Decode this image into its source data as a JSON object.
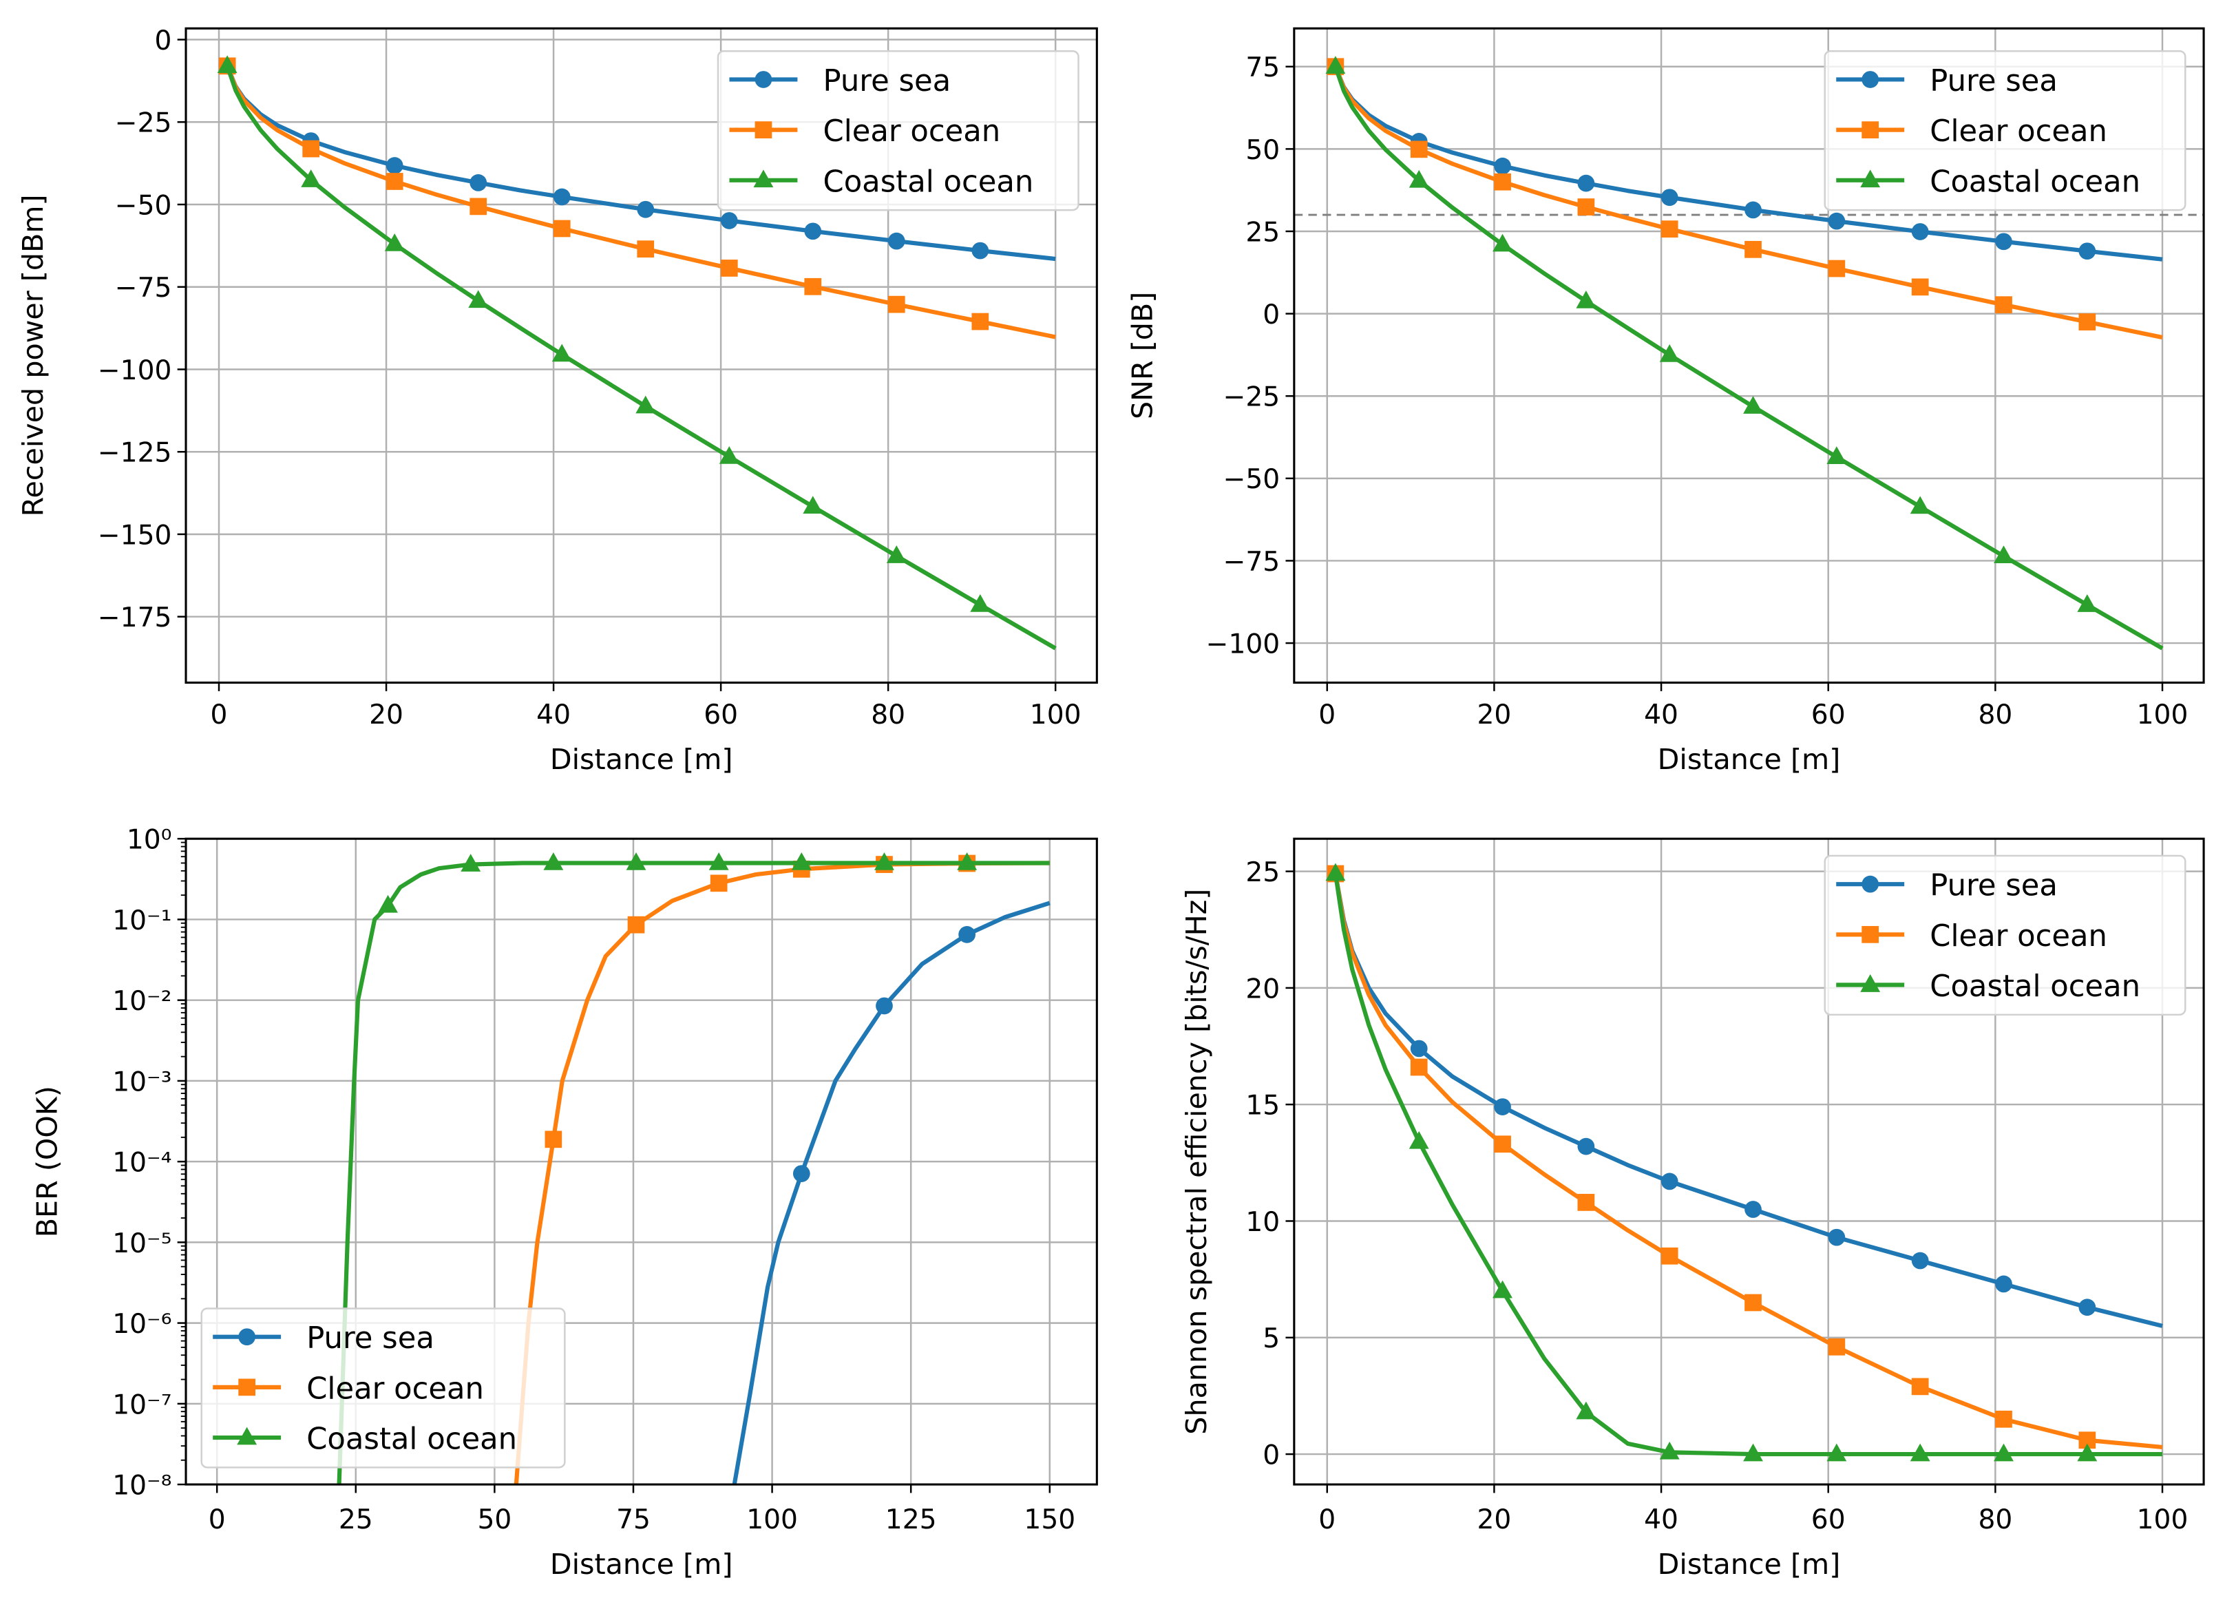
{
  "colors": {
    "pure_sea": "#1f77b4",
    "clear_ocean": "#ff7f0e",
    "coastal_ocean": "#2ca02c",
    "threshold": "#808080"
  },
  "chart_data": [
    {
      "type": "line",
      "xlabel": "Distance [m]",
      "ylabel": "Received power [dBm]",
      "xlim": [
        -3.95,
        104.95
      ],
      "ylim": [
        -195,
        3.4
      ],
      "xticks": [
        0,
        20,
        40,
        60,
        80,
        100
      ],
      "xtick_labels": [
        "0",
        "20",
        "40",
        "60",
        "80",
        "100"
      ],
      "yticks": [
        0,
        -25,
        -50,
        -75,
        -100,
        -125,
        -150,
        -175
      ],
      "ytick_labels": [
        "0",
        "−25",
        "−50",
        "−75",
        "−100",
        "−125",
        "−150",
        "−175"
      ],
      "grid": true,
      "legend": "upper-right",
      "x": [
        1,
        2,
        3,
        5,
        7,
        11,
        15,
        21,
        26,
        31,
        36,
        41,
        51,
        61,
        71,
        81,
        91,
        100
      ],
      "markers_x": [
        1,
        11,
        21,
        31,
        41,
        51,
        61,
        71,
        81,
        91
      ],
      "series": [
        {
          "name": "Pure sea",
          "marker": "circle",
          "values": [
            -8,
            -14.2,
            -17.9,
            -22.7,
            -26.0,
            -30.7,
            -34.1,
            -38.2,
            -41.0,
            -43.4,
            -45.7,
            -47.7,
            -51.5,
            -54.9,
            -58.1,
            -61.1,
            -64.0,
            -66.5
          ]
        },
        {
          "name": "Clear ocean",
          "marker": "square",
          "values": [
            -8,
            -14.4,
            -18.4,
            -23.7,
            -27.5,
            -33.1,
            -37.5,
            -43.0,
            -47.0,
            -50.6,
            -54.0,
            -57.3,
            -63.5,
            -69.3,
            -74.9,
            -80.3,
            -85.5,
            -90.2
          ]
        },
        {
          "name": "Coastal ocean",
          "marker": "triangle",
          "values": [
            -8,
            -15.4,
            -20.3,
            -27.5,
            -33.2,
            -42.6,
            -50.8,
            -62.0,
            -70.8,
            -79.2,
            -87.4,
            -95.5,
            -111.2,
            -126.5,
            -141.6,
            -156.6,
            -171.4,
            -184.6
          ]
        }
      ]
    },
    {
      "type": "line",
      "xlabel": "Distance [m]",
      "ylabel": "SNR [dB]",
      "xlim": [
        -3.95,
        104.95
      ],
      "ylim": [
        -112,
        86.6
      ],
      "xticks": [
        0,
        20,
        40,
        60,
        80,
        100
      ],
      "xtick_labels": [
        "0",
        "20",
        "40",
        "60",
        "80",
        "100"
      ],
      "yticks": [
        75,
        50,
        25,
        0,
        -25,
        -50,
        -75,
        -100
      ],
      "ytick_labels": [
        "75",
        "50",
        "25",
        "0",
        "−25",
        "−50",
        "−75",
        "−100"
      ],
      "grid": true,
      "legend": "upper-right",
      "hline": {
        "y": 30,
        "style": "dashed"
      },
      "x": [
        1,
        2,
        3,
        5,
        7,
        11,
        15,
        21,
        26,
        31,
        36,
        41,
        51,
        61,
        71,
        81,
        91,
        100
      ],
      "markers_x": [
        1,
        11,
        21,
        31,
        41,
        51,
        61,
        71,
        81,
        91
      ],
      "series": [
        {
          "name": "Pure sea",
          "marker": "circle",
          "values": [
            75,
            68.8,
            65.1,
            60.3,
            57.0,
            52.3,
            48.9,
            44.8,
            42.0,
            39.6,
            37.3,
            35.3,
            31.5,
            28.1,
            24.9,
            21.9,
            19.0,
            16.5
          ]
        },
        {
          "name": "Clear ocean",
          "marker": "square",
          "values": [
            75,
            68.6,
            64.6,
            59.3,
            55.5,
            49.9,
            45.5,
            40.0,
            36.0,
            32.4,
            29.0,
            25.7,
            19.5,
            13.7,
            8.1,
            2.7,
            -2.5,
            -7.2
          ]
        },
        {
          "name": "Coastal ocean",
          "marker": "triangle",
          "values": [
            75,
            67.6,
            62.7,
            55.5,
            49.8,
            40.4,
            32.2,
            21.0,
            12.2,
            3.8,
            -4.4,
            -12.5,
            -28.2,
            -43.5,
            -58.6,
            -73.6,
            -88.4,
            -101.6
          ]
        }
      ]
    },
    {
      "type": "line",
      "xlabel": "Distance [m]",
      "ylabel": "BER (OOK)",
      "yscale": "log",
      "xlim": [
        -5.6,
        158.5
      ],
      "ylim": [
        1e-08,
        1
      ],
      "xticks": [
        0,
        25,
        50,
        75,
        100,
        125,
        150
      ],
      "xtick_labels": [
        "0",
        "25",
        "50",
        "75",
        "100",
        "125",
        "150"
      ],
      "yticks": [
        1,
        0.1,
        0.01,
        0.001,
        0.0001,
        1e-05,
        1e-06,
        1e-07,
        1e-08
      ],
      "ytick_labels": [
        "10⁰",
        "10⁻¹",
        "10⁻²",
        "10⁻³",
        "10⁻⁴",
        "10⁻⁵",
        "10⁻⁶",
        "10⁻⁷",
        "10⁻⁸"
      ],
      "grid": true,
      "legend": "lower-left",
      "markers_x": [
        30.8,
        45.7,
        60.6,
        75.5,
        90.4,
        105.3,
        120.2,
        135.1
      ],
      "series": [
        {
          "name": "Pure sea",
          "marker": "circle",
          "x": [
            93.2,
            96,
            99.2,
            101.1,
            105.2,
            111.4,
            115,
            120.2,
            127,
            135.1,
            142,
            150
          ],
          "values": [
            1e-08,
            1.3e-07,
            2.8e-06,
            1e-05,
            6.8e-05,
            0.001,
            0.0025,
            0.0085,
            0.028,
            0.065,
            0.107,
            0.16
          ]
        },
        {
          "name": "Clear ocean",
          "marker": "square",
          "x": [
            53.9,
            56.1,
            57.7,
            60.5,
            62.2,
            66.7,
            70,
            75.4,
            82,
            90.3,
            97,
            105.2,
            120.2,
            135.1,
            150
          ],
          "values": [
            1e-08,
            1e-06,
            1e-05,
            0.00017,
            0.001,
            0.01,
            0.035,
            0.085,
            0.17,
            0.28,
            0.36,
            0.42,
            0.48,
            0.495,
            0.5
          ]
        },
        {
          "name": "Coastal ocean",
          "marker": "triangle",
          "x": [
            22.0,
            23.5,
            24.7,
            25.4,
            28.4,
            30.7,
            33,
            36.7,
            40,
            45.6,
            55,
            150
          ],
          "values": [
            1e-08,
            1e-05,
            0.001,
            0.01,
            0.1,
            0.145,
            0.25,
            0.36,
            0.43,
            0.48,
            0.5,
            0.5
          ]
        }
      ]
    },
    {
      "type": "line",
      "xlabel": "Distance [m]",
      "ylabel": "Shannon spectral efficiency [bits/s/Hz]",
      "xlim": [
        -3.95,
        104.95
      ],
      "ylim": [
        -1.3,
        26.4
      ],
      "xticks": [
        0,
        20,
        40,
        60,
        80,
        100
      ],
      "xtick_labels": [
        "0",
        "20",
        "40",
        "60",
        "80",
        "100"
      ],
      "yticks": [
        0,
        5,
        10,
        15,
        20,
        25
      ],
      "ytick_labels": [
        "0",
        "5",
        "10",
        "15",
        "20",
        "25"
      ],
      "grid": true,
      "legend": "upper-right",
      "x": [
        1,
        2,
        3,
        5,
        7,
        11,
        15,
        21,
        26,
        31,
        36,
        41,
        51,
        61,
        71,
        81,
        91,
        100
      ],
      "markers_x": [
        1,
        11,
        21,
        31,
        41,
        51,
        61,
        71,
        81,
        91
      ],
      "series": [
        {
          "name": "Pure sea",
          "marker": "circle",
          "values": [
            24.9,
            22.9,
            21.6,
            20.0,
            18.9,
            17.4,
            16.2,
            14.9,
            14.0,
            13.2,
            12.4,
            11.7,
            10.5,
            9.3,
            8.3,
            7.3,
            6.3,
            5.5
          ]
        },
        {
          "name": "Clear ocean",
          "marker": "square",
          "values": [
            24.9,
            22.8,
            21.5,
            19.7,
            18.4,
            16.6,
            15.1,
            13.3,
            12.0,
            10.8,
            9.6,
            8.5,
            6.5,
            4.6,
            2.9,
            1.5,
            0.6,
            0.3
          ]
        },
        {
          "name": "Coastal ocean",
          "marker": "triangle",
          "values": [
            24.9,
            22.5,
            20.8,
            18.4,
            16.5,
            13.4,
            10.7,
            7.0,
            4.1,
            1.8,
            0.45,
            0.08,
            0,
            0,
            0,
            0,
            0,
            0
          ]
        }
      ]
    }
  ]
}
